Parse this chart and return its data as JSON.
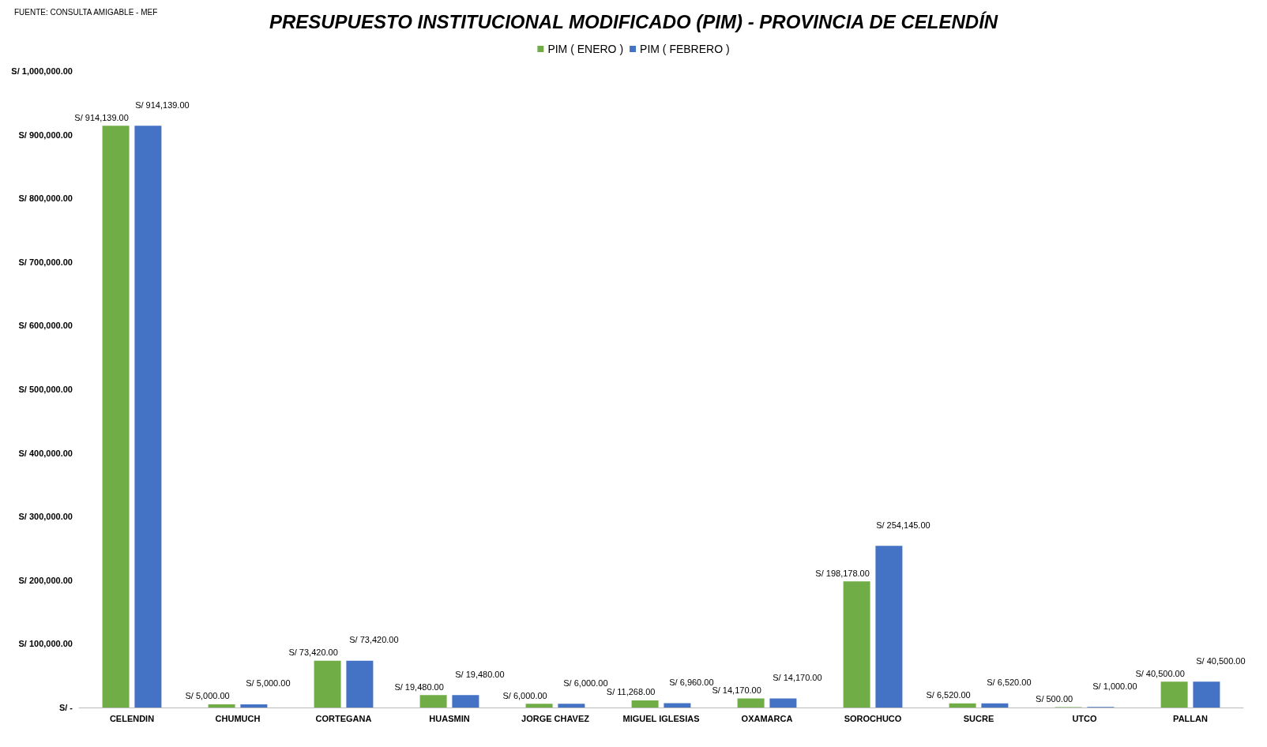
{
  "chart_data": {
    "type": "bar",
    "title": "PRESUPUESTO INSTITUCIONAL MODIFICADO (PIM) - PROVINCIA DE CELENDÍN",
    "annotations": [
      "FUENTE: CONSULTA AMIGABLE - MEF"
    ],
    "categories": [
      "CELENDIN",
      "CHUMUCH",
      "CORTEGANA",
      "HUASMIN",
      "JORGE CHAVEZ",
      "MIGUEL IGLESIAS",
      "OXAMARCA",
      "SOROCHUCO",
      "SUCRE",
      "UTCO",
      "PALLAN"
    ],
    "series": [
      {
        "name": "PIM ( ENERO )",
        "color": "#70ad47",
        "values": [
          914139,
          5000,
          73420,
          19480,
          6000,
          11268,
          14170,
          198178,
          6520,
          500,
          40500
        ],
        "value_labels": [
          "S/ 914,139.00",
          "S/ 5,000.00",
          "S/ 73,420.00",
          "S/ 19,480.00",
          "S/ 6,000.00",
          "S/ 11,268.00",
          "S/ 14,170.00",
          "S/ 198,178.00",
          "S/ 6,520.00",
          "S/ 500.00",
          "S/ 40,500.00"
        ]
      },
      {
        "name": "PIM ( FEBRERO )",
        "color": "#4472c4",
        "values": [
          914139,
          5000,
          73420,
          19480,
          6000,
          6960,
          14170,
          254145,
          6520,
          1000,
          40500
        ],
        "value_labels": [
          "S/ 914,139.00",
          "S/ 5,000.00",
          "S/ 73,420.00",
          "S/ 19,480.00",
          "S/ 6,000.00",
          "S/ 6,960.00",
          "S/ 14,170.00",
          "S/ 254,145.00",
          "S/ 6,520.00",
          "S/ 1,000.00",
          "S/ 40,500.00"
        ]
      }
    ],
    "ylim": [
      0,
      1000000
    ],
    "yticks": [
      {
        "value": 0,
        "label": "S/ -"
      },
      {
        "value": 100000,
        "label": "S/ 100,000.00"
      },
      {
        "value": 200000,
        "label": "S/ 200,000.00"
      },
      {
        "value": 300000,
        "label": "S/ 300,000.00"
      },
      {
        "value": 400000,
        "label": "S/ 400,000.00"
      },
      {
        "value": 500000,
        "label": "S/ 500,000.00"
      },
      {
        "value": 600000,
        "label": "S/ 600,000.00"
      },
      {
        "value": 700000,
        "label": "S/ 700,000.00"
      },
      {
        "value": 800000,
        "label": "S/ 800,000.00"
      },
      {
        "value": 900000,
        "label": "S/ 900,000.00"
      },
      {
        "value": 1000000,
        "label": "S/ 1,000,000.00"
      }
    ],
    "grid": false,
    "legend": "top"
  }
}
